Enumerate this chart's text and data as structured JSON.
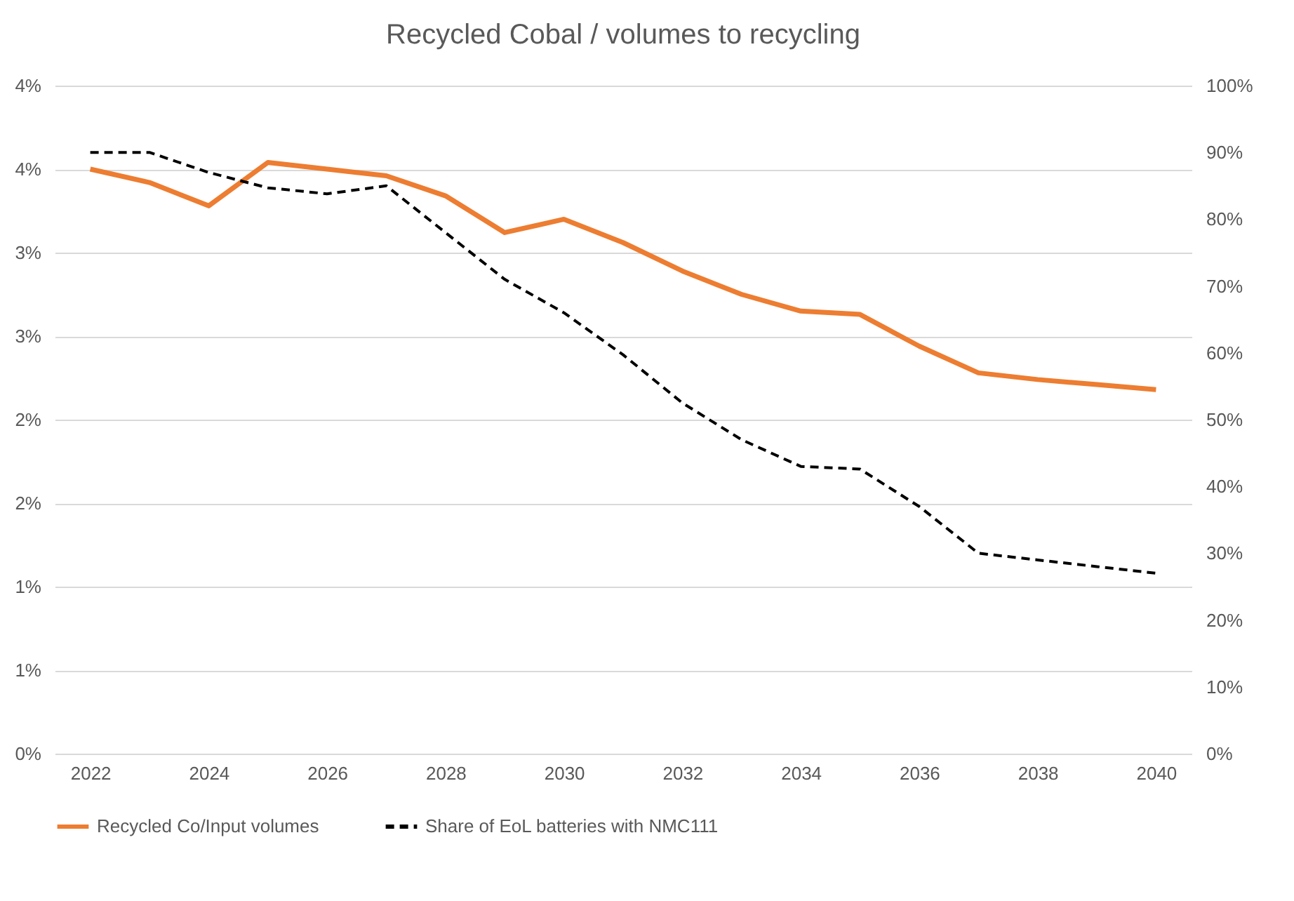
{
  "chart_data": {
    "type": "line",
    "title": "Recycled Cobal / volumes to recycling",
    "x": [
      2022,
      2023,
      2024,
      2025,
      2026,
      2027,
      2028,
      2029,
      2030,
      2031,
      2032,
      2033,
      2034,
      2035,
      2036,
      2037,
      2038,
      2039,
      2040
    ],
    "xlim": [
      2021.4,
      2040.6
    ],
    "xticks": [
      2022,
      2024,
      2026,
      2028,
      2030,
      2032,
      2034,
      2036,
      2038,
      2040
    ],
    "ylim": [
      0,
      4
    ],
    "yticks": [
      {
        "value": 0,
        "label": "0%"
      },
      {
        "value": 0.5,
        "label": "1%"
      },
      {
        "value": 1,
        "label": "1%"
      },
      {
        "value": 1.5,
        "label": "2%"
      },
      {
        "value": 2,
        "label": "2%"
      },
      {
        "value": 2.5,
        "label": "3%"
      },
      {
        "value": 3,
        "label": "3%"
      },
      {
        "value": 3.5,
        "label": "4%"
      },
      {
        "value": 4,
        "label": "4%"
      }
    ],
    "y2lim": [
      0,
      100
    ],
    "y2ticks": [
      {
        "value": 0,
        "label": "0%"
      },
      {
        "value": 10,
        "label": "10%"
      },
      {
        "value": 20,
        "label": "20%"
      },
      {
        "value": 30,
        "label": "30%"
      },
      {
        "value": 40,
        "label": "40%"
      },
      {
        "value": 50,
        "label": "50%"
      },
      {
        "value": 60,
        "label": "60%"
      },
      {
        "value": 70,
        "label": "70%"
      },
      {
        "value": 80,
        "label": "80%"
      },
      {
        "value": 90,
        "label": "90%"
      },
      {
        "value": 100,
        "label": "100%"
      }
    ],
    "grid": "y",
    "legend": "bottom",
    "series": [
      {
        "name": "Recycled Co/Input volumes",
        "color": "#ed7d31",
        "line_style": "solid",
        "values": [
          3.5,
          3.42,
          3.28,
          3.54,
          3.5,
          3.46,
          3.34,
          3.12,
          3.2,
          3.06,
          2.89,
          2.75,
          2.65,
          2.63,
          2.44,
          2.28,
          2.24,
          2.21,
          2.18
        ]
      },
      {
        "name": "Share of EoL batteries with NMC111",
        "color": "#000000",
        "line_style": "dashed",
        "axis": "y2",
        "values": [
          90,
          90,
          87,
          84.7,
          83.8,
          85,
          78,
          71,
          66,
          59.7,
          52.5,
          47,
          43,
          42.6,
          37,
          30,
          29,
          28,
          27
        ]
      }
    ]
  }
}
